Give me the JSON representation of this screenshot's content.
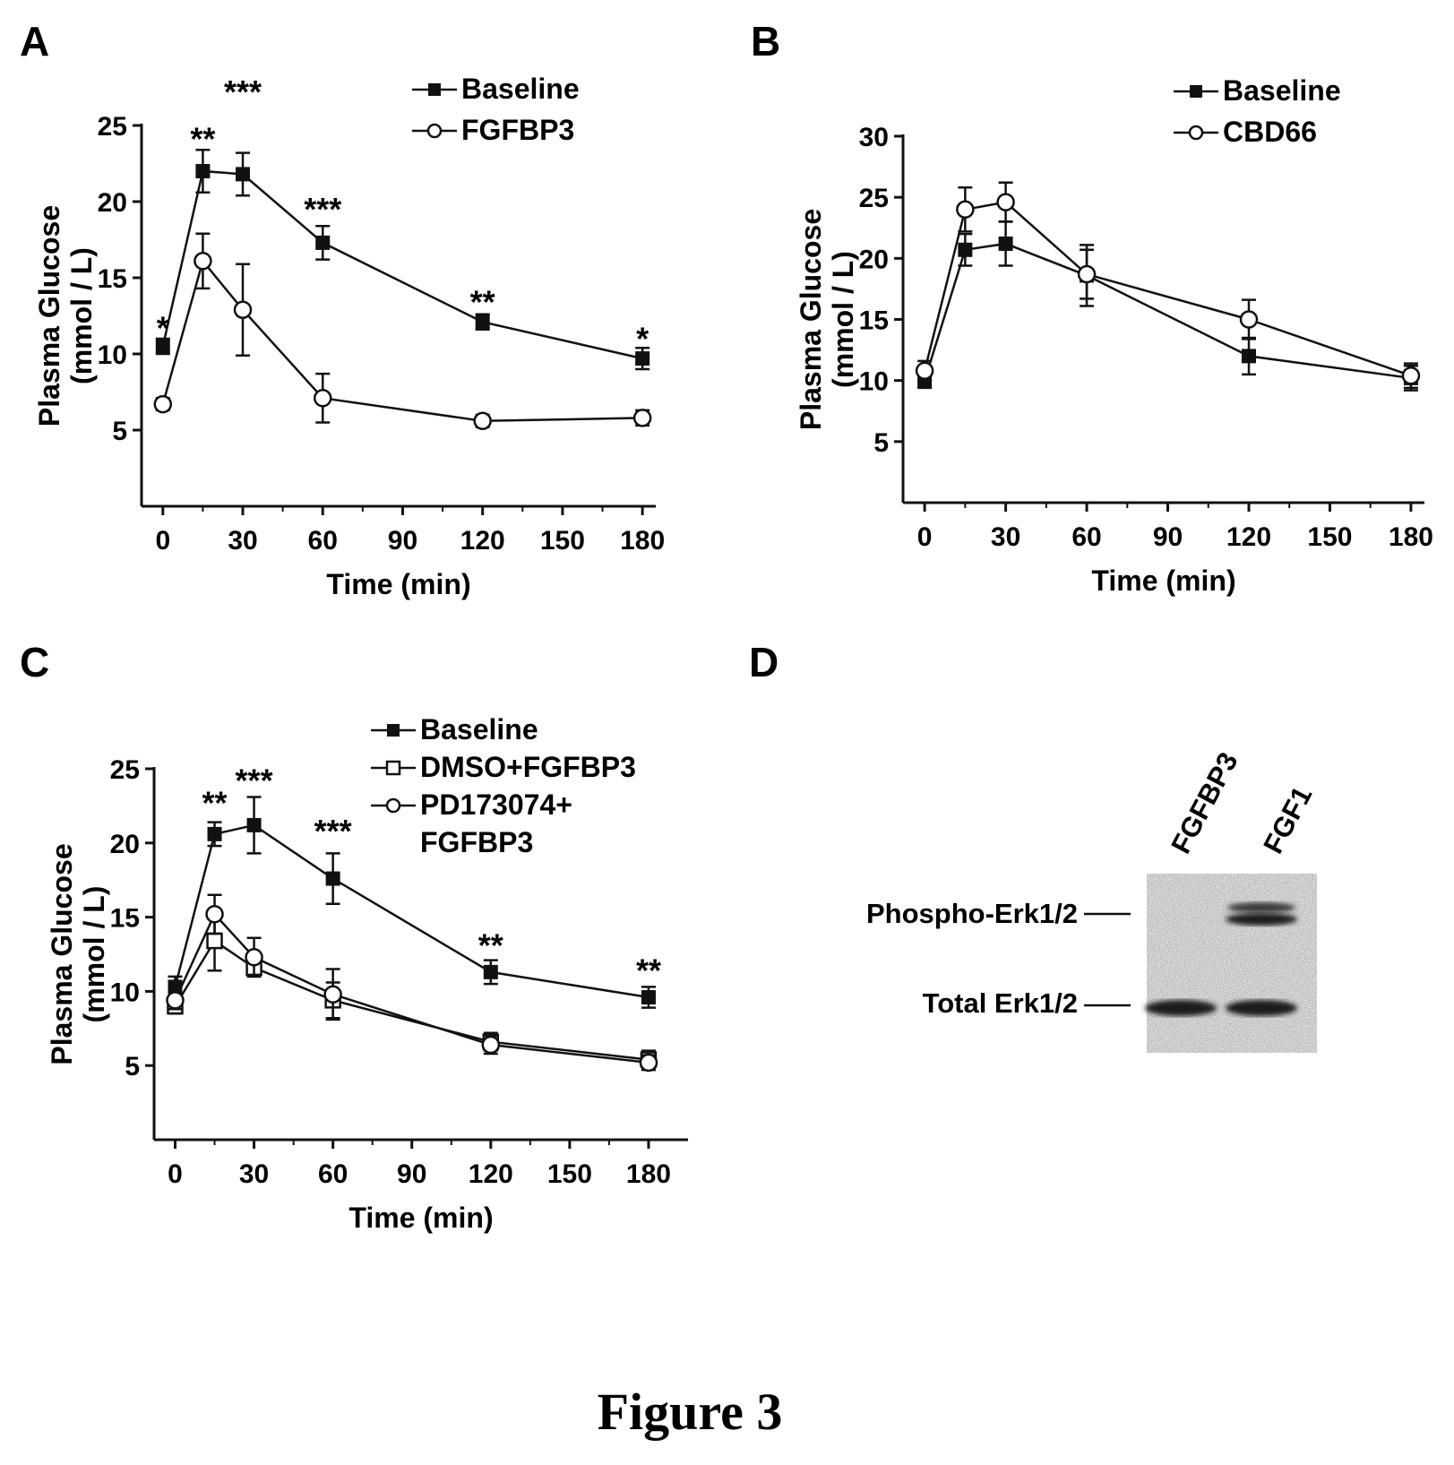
{
  "figure_caption": "Figure 3",
  "chart_data": [
    {
      "panel": "A",
      "type": "line",
      "xlabel": "Time (min)",
      "ylabel_line1": "Plasma Glucose",
      "ylabel_line2": "(mmol / L)",
      "xticks": [
        0,
        30,
        60,
        90,
        120,
        150,
        180
      ],
      "yticks": [
        5,
        10,
        15,
        20,
        25
      ],
      "xlim": [
        -8,
        185
      ],
      "ylim": [
        0,
        25
      ],
      "series": [
        {
          "name": "Baseline",
          "marker": "filled-square",
          "x": [
            0,
            15,
            30,
            60,
            120,
            180
          ],
          "y": [
            10.5,
            22.0,
            21.8,
            17.3,
            12.1,
            9.7
          ],
          "err": [
            0.5,
            1.4,
            1.4,
            1.1,
            0.5,
            0.7
          ]
        },
        {
          "name": "FGFBP3",
          "marker": "open-circle",
          "x": [
            0,
            15,
            30,
            60,
            120,
            180
          ],
          "y": [
            6.7,
            16.1,
            12.9,
            7.1,
            5.6,
            5.8
          ],
          "err": [
            0.4,
            1.8,
            3.0,
            1.6,
            0.4,
            0.5
          ]
        }
      ],
      "annotations": [
        {
          "text": "*",
          "x": 0,
          "y": 11.8
        },
        {
          "text": "**",
          "x": 15,
          "y": 24.2
        },
        {
          "text": "***",
          "x": 30,
          "y": 27.3
        },
        {
          "text": "***",
          "x": 60,
          "y": 19.6
        },
        {
          "text": "**",
          "x": 120,
          "y": 13.5
        },
        {
          "text": "*",
          "x": 180,
          "y": 11.1
        }
      ]
    },
    {
      "panel": "B",
      "type": "line",
      "xlabel": "Time (min)",
      "ylabel_line1": "Plasma Glucose",
      "ylabel_line2": "(mmol / L)",
      "xticks": [
        0,
        30,
        60,
        90,
        120,
        150,
        180
      ],
      "yticks": [
        5,
        10,
        15,
        20,
        25,
        30
      ],
      "xlim": [
        -8,
        185
      ],
      "ylim": [
        0,
        30
      ],
      "series": [
        {
          "name": "Baseline",
          "marker": "filled-square",
          "x": [
            0,
            15,
            30,
            60,
            120,
            180
          ],
          "y": [
            10.0,
            20.7,
            21.2,
            18.6,
            12.0,
            10.2
          ],
          "err": [
            0.6,
            1.3,
            1.8,
            2.5,
            1.5,
            1.0
          ]
        },
        {
          "name": "CBD66",
          "marker": "open-circle",
          "x": [
            0,
            15,
            30,
            60,
            120,
            180
          ],
          "y": [
            10.8,
            24.0,
            24.6,
            18.7,
            15.0,
            10.4
          ],
          "err": [
            0.8,
            1.8,
            1.6,
            2.0,
            1.6,
            1.0
          ]
        }
      ],
      "annotations": []
    },
    {
      "panel": "C",
      "type": "line",
      "xlabel": "Time (min)",
      "ylabel_line1": "Plasma Glucose",
      "ylabel_line2": "(mmol / L)",
      "xticks": [
        0,
        30,
        60,
        90,
        120,
        150,
        180
      ],
      "yticks": [
        5,
        10,
        15,
        20,
        25
      ],
      "xlim": [
        -8,
        195
      ],
      "ylim": [
        0,
        25
      ],
      "series": [
        {
          "name": "Baseline",
          "marker": "filled-square",
          "x": [
            0,
            15,
            30,
            60,
            120,
            180
          ],
          "y": [
            10.3,
            20.6,
            21.2,
            17.6,
            11.3,
            9.6
          ],
          "err": [
            0.7,
            0.8,
            1.9,
            1.7,
            0.8,
            0.7
          ]
        },
        {
          "name": "DMSO+FGFBP3",
          "marker": "open-square",
          "x": [
            0,
            15,
            30,
            60,
            120,
            180
          ],
          "y": [
            9.0,
            13.4,
            11.6,
            9.4,
            6.6,
            5.4
          ],
          "err": [
            0.5,
            2.0,
            0.6,
            1.2,
            0.6,
            0.6
          ]
        },
        {
          "name": "PD173074+",
          "name_line2": "FGFBP3",
          "marker": "open-circle",
          "x": [
            0,
            15,
            30,
            60,
            120,
            180
          ],
          "y": [
            9.4,
            15.2,
            12.3,
            9.8,
            6.4,
            5.2
          ],
          "err": [
            0.6,
            1.3,
            1.3,
            1.7,
            0.6,
            0.5
          ]
        }
      ],
      "annotations": [
        {
          "text": "**",
          "x": 15,
          "y": 22.8
        },
        {
          "text": "***",
          "x": 30,
          "y": 24.3
        },
        {
          "text": "***",
          "x": 60,
          "y": 20.9
        },
        {
          "text": "**",
          "x": 120,
          "y": 13.2
        },
        {
          "text": "**",
          "x": 180,
          "y": 11.5
        }
      ]
    }
  ],
  "panels": {
    "A": {
      "letter": "A"
    },
    "B": {
      "letter": "B"
    },
    "C": {
      "letter": "C"
    },
    "D": {
      "letter": "D",
      "lanes": [
        "FGFBP3",
        "FGF1"
      ],
      "bands": [
        "Phospho-Erk1/2",
        "Total Erk1/2"
      ]
    }
  }
}
